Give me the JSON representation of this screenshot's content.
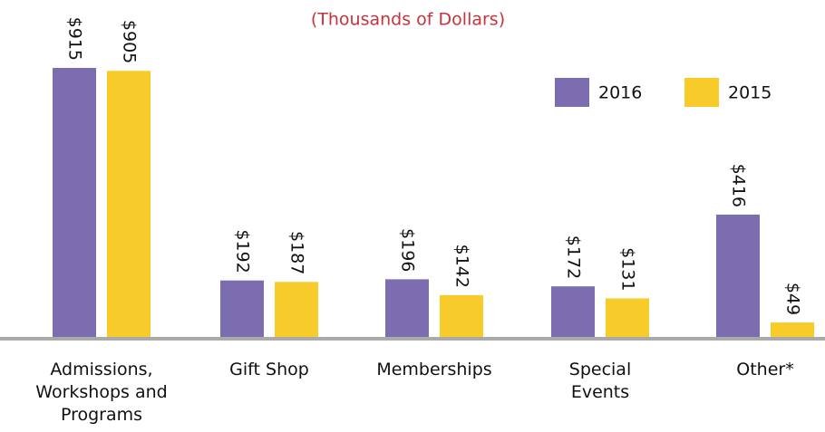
{
  "chart_data": {
    "type": "bar",
    "title": "(Thousands of Dollars)",
    "categories": [
      "Admissions, Workshops and Programs",
      "Gift Shop",
      "Memberships",
      "Special Events",
      "Other*"
    ],
    "series": [
      {
        "name": "2016",
        "color": "#7b6db0",
        "values": [
          915,
          192,
          196,
          172,
          416
        ],
        "value_labels": [
          "$915",
          "$192",
          "$196",
          "$172",
          "$416"
        ]
      },
      {
        "name": "2015",
        "color": "#f6cb2a",
        "values": [
          905,
          187,
          142,
          131,
          49
        ],
        "value_labels": [
          "$905",
          "$187",
          "$142",
          "$131",
          "$49"
        ]
      }
    ],
    "legend": "top-right"
  }
}
